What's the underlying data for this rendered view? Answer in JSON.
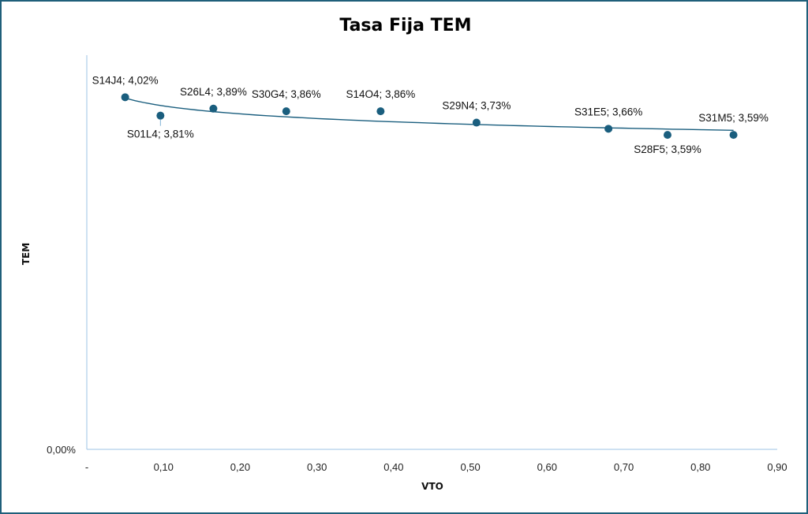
{
  "chart_data": {
    "type": "scatter",
    "title": "Tasa Fija TEM",
    "xlabel": "VTO",
    "ylabel": "TEM",
    "xlim": [
      0,
      0.9
    ],
    "ylim": [
      0,
      0.045
    ],
    "x_tick_labels": [
      "-",
      "0,10",
      "0,20",
      "0,30",
      "0,40",
      "0,50",
      "0,60",
      "0,70",
      "0,80",
      "0,90"
    ],
    "x_tick_values": [
      0,
      0.1,
      0.2,
      0.3,
      0.4,
      0.5,
      0.6,
      0.7,
      0.8,
      0.9
    ],
    "y_tick_labels": [
      "0,00%"
    ],
    "y_tick_values": [
      0
    ],
    "trendline": true,
    "colors": {
      "marker": "#1a5e7e",
      "trendline": "#1a5e7e",
      "axis": "#9dc3e6",
      "frame": "#1f5f7a"
    },
    "points": [
      {
        "name": "S14J4",
        "x": 0.05,
        "y": 0.0402,
        "label": "S14J4; 4,02%"
      },
      {
        "name": "S01L4",
        "x": 0.096,
        "y": 0.0381,
        "label": "S01L4; 3,81%"
      },
      {
        "name": "S26L4",
        "x": 0.165,
        "y": 0.0389,
        "label": "S26L4; 3,89%"
      },
      {
        "name": "S30G4",
        "x": 0.26,
        "y": 0.0386,
        "label": "S30G4; 3,86%"
      },
      {
        "name": "S14O4",
        "x": 0.383,
        "y": 0.0386,
        "label": "S14O4; 3,86%"
      },
      {
        "name": "S29N4",
        "x": 0.508,
        "y": 0.0373,
        "label": "S29N4; 3,73%"
      },
      {
        "name": "S31E5",
        "x": 0.68,
        "y": 0.0366,
        "label": "S31E5; 3,66%"
      },
      {
        "name": "S28F5",
        "x": 0.757,
        "y": 0.0359,
        "label": "S28F5; 3,59%"
      },
      {
        "name": "S31M5",
        "x": 0.843,
        "y": 0.0359,
        "label": "S31M5; 3,59%"
      }
    ]
  }
}
